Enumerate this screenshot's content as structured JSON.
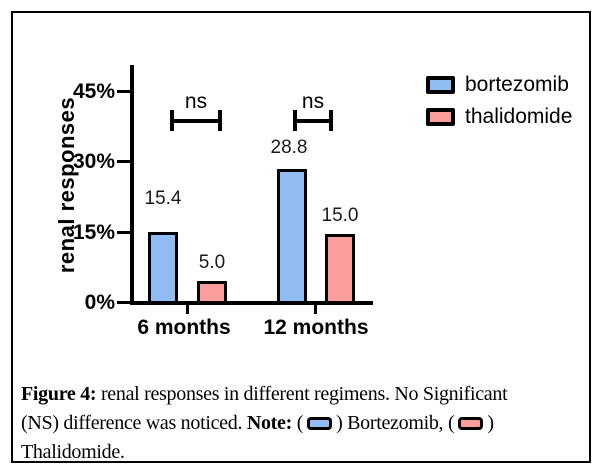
{
  "chart_data": {
    "type": "bar",
    "title": "",
    "ylabel": "renal responses",
    "xlabel": "",
    "categories": [
      "6 months",
      "12 months"
    ],
    "series": [
      {
        "name": "bortezomib",
        "color": "#8FBCF2",
        "values": [
          15.4,
          28.8
        ]
      },
      {
        "name": "thalidomide",
        "color": "#FB9D9B",
        "values": [
          5.0,
          15.0
        ]
      }
    ],
    "value_labels": [
      "15.4",
      "5.0",
      "28.8",
      "15.0"
    ],
    "yticks_top_to_bottom": [
      "45%",
      "30%",
      "15%",
      "0%"
    ],
    "ylim": [
      0,
      50
    ],
    "grid": false,
    "annotations": [
      {
        "text": "ns",
        "category": "6 months"
      },
      {
        "text": "ns",
        "category": "12 months"
      }
    ],
    "legend": {
      "position": "top-right",
      "entries": [
        "bortezomib",
        "thalidomide"
      ]
    },
    "axis_color": "#000000"
  },
  "caption": {
    "line1_bold": "Figure 4:",
    "line1_rest": " renal responses in different regimens. No Significant",
    "line2_start": "(NS) difference was noticed. ",
    "line2_bold": "Note:",
    "line2_open": " (",
    "line2_mid": ") Bortezomib, (",
    "line2_close": ")",
    "line3": "Thalidomide."
  }
}
